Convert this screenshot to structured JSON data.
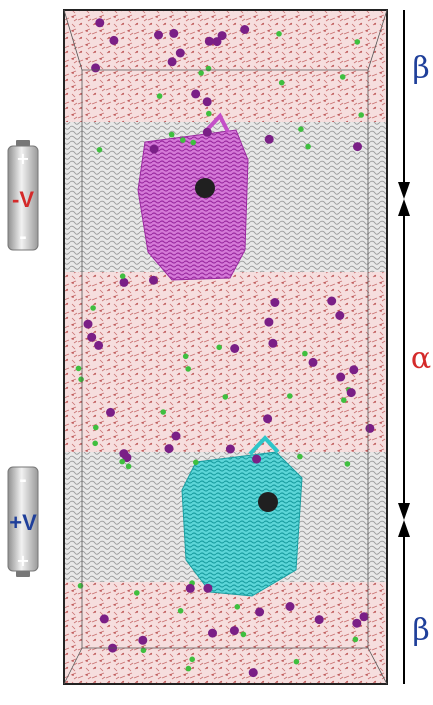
{
  "battery_top": {
    "label": "-V",
    "top_terminal": "+",
    "bottom_terminal": "-",
    "label_color": "#d42a2a"
  },
  "battery_bottom": {
    "label": "+V",
    "top_terminal": "-",
    "bottom_terminal": "+",
    "label_color": "#1f3f9a"
  },
  "regions": {
    "top": "β",
    "middle": "α",
    "bottom": "β"
  },
  "colors": {
    "water": "#d79a9a",
    "membrane": "#cfcfcf",
    "protein_top": "#c44fc8",
    "protein_bottom": "#2ec6c9",
    "ion_large": "#7a1f86",
    "ion_small": "#3fbf3f",
    "beta_label": "#1f3f9a",
    "alpha_label": "#d42a2a",
    "arrow": "#000000"
  }
}
